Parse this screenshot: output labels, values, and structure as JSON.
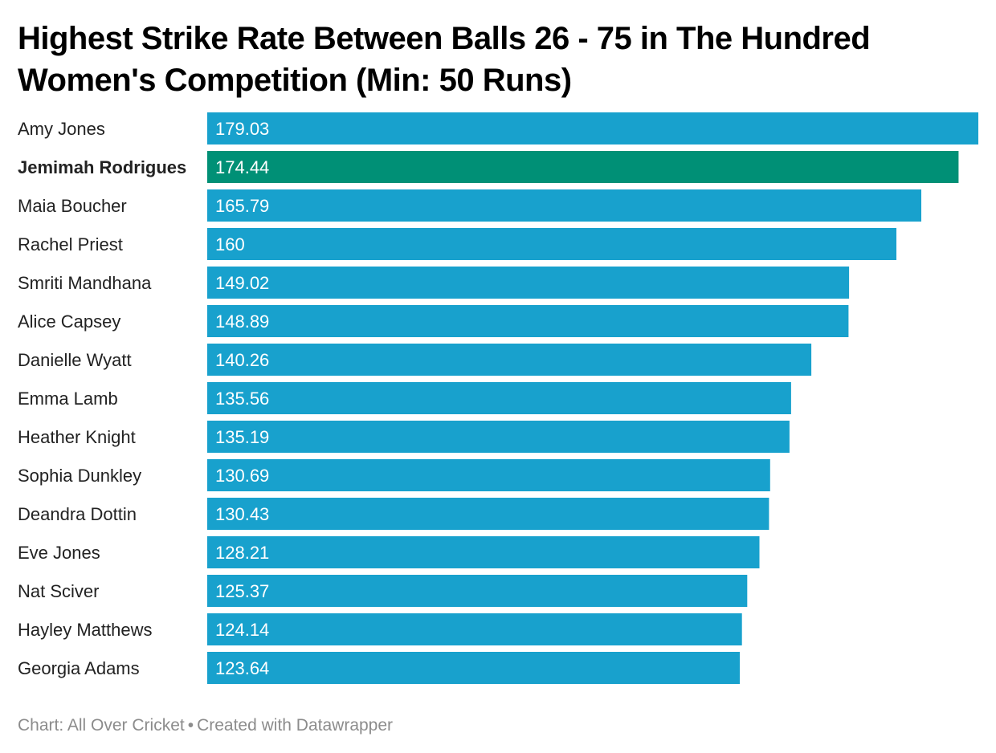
{
  "chart_data": {
    "type": "bar",
    "orientation": "horizontal",
    "title": "Highest Strike Rate Between Balls 26 - 75 in The Hundred Women's Competition (Min: 50 Runs)",
    "categories": [
      "Amy Jones",
      "Jemimah Rodrigues",
      "Maia Boucher",
      "Rachel Priest",
      "Smriti Mandhana",
      "Alice Capsey",
      "Danielle Wyatt",
      "Emma Lamb",
      "Heather Knight",
      "Sophia Dunkley",
      "Deandra Dottin",
      "Eve Jones",
      "Nat Sciver",
      "Hayley Matthews",
      "Georgia Adams"
    ],
    "values": [
      179.03,
      174.44,
      165.79,
      160,
      149.02,
      148.89,
      140.26,
      135.56,
      135.19,
      130.69,
      130.43,
      128.21,
      125.37,
      124.14,
      123.64
    ],
    "value_labels": [
      "179.03",
      "174.44",
      "165.79",
      "160",
      "149.02",
      "148.89",
      "140.26",
      "135.56",
      "135.19",
      "130.69",
      "130.43",
      "128.21",
      "125.37",
      "124.14",
      "123.64"
    ],
    "highlight_index": 1,
    "xlim": [
      0,
      179.03
    ],
    "grid": false,
    "colors": {
      "bar": "#18a1cd",
      "highlight": "#009076",
      "label_text": "#ffffff",
      "category_text": "#222222"
    }
  },
  "footer": {
    "source": "Chart: All Over Cricket",
    "separator": "•",
    "credit": "Created with Datawrapper"
  }
}
